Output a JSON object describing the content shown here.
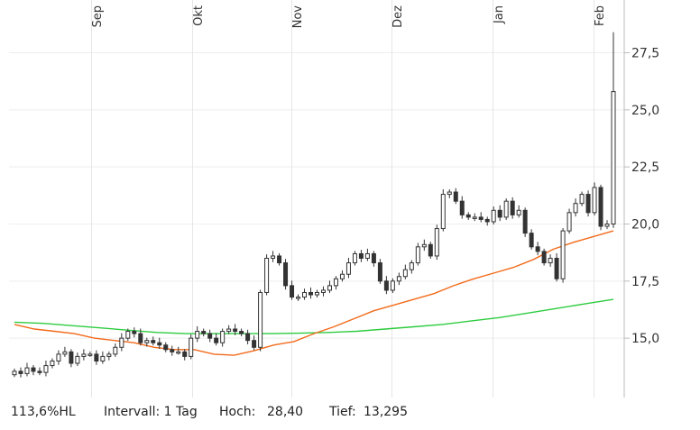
{
  "chart_data": {
    "type": "candlestick",
    "x_tick_labels": [
      "Sep",
      "Okt",
      "Nov",
      "Dez",
      "Jan",
      "Feb"
    ],
    "y_tick_labels": [
      "15,0",
      "17,5",
      "20,0",
      "22,5",
      "25,0",
      "27,5"
    ],
    "y_ticks": [
      15.0,
      17.5,
      20.0,
      22.5,
      25.0,
      27.5
    ],
    "ylim": [
      12.4,
      29.1
    ],
    "grid": true,
    "series": [
      {
        "type": "candlestick",
        "color": "#333333",
        "values": [
          13.55,
          13.45,
          13.7,
          13.55,
          13.5,
          13.8,
          14.0,
          14.3,
          14.4,
          13.9,
          14.2,
          14.3,
          14.3,
          14.0,
          14.2,
          14.3,
          14.6,
          15.0,
          15.3,
          15.2,
          14.8,
          14.9,
          14.8,
          14.7,
          14.5,
          14.4,
          14.4,
          14.2,
          15.0,
          15.3,
          15.2,
          15.0,
          14.8,
          15.3,
          15.4,
          15.3,
          15.2,
          14.9,
          14.6,
          17.0,
          18.5,
          18.6,
          18.3,
          17.3,
          16.8,
          16.8,
          17.0,
          16.9,
          17.0,
          17.1,
          17.3,
          17.6,
          17.8,
          18.3,
          18.7,
          18.5,
          18.7,
          18.3,
          17.5,
          17.1,
          17.5,
          17.7,
          18.0,
          18.3,
          19.0,
          19.1,
          18.6,
          19.8,
          21.3,
          21.4,
          21.0,
          20.4,
          20.3,
          20.3,
          20.2,
          20.1,
          20.6,
          20.3,
          21.0,
          20.4,
          20.6,
          19.6,
          19.0,
          18.8,
          18.3,
          18.5,
          17.6,
          19.7,
          20.5,
          20.9,
          21.3,
          20.5,
          21.6,
          19.9,
          20.0,
          25.8
        ],
        "index_range": [
          0,
          95
        ]
      },
      {
        "type": "line",
        "color": "#f26a1b",
        "values": [
          15.6,
          15.4,
          15.3,
          15.2,
          15.0,
          14.9,
          14.8,
          14.6,
          14.5,
          14.5,
          14.3,
          14.25,
          14.45,
          14.7,
          14.85,
          15.2,
          15.5,
          15.85,
          16.2,
          16.45,
          16.7,
          16.95,
          17.3,
          17.6,
          17.85,
          18.1,
          18.45,
          18.9,
          19.2,
          19.45,
          19.7
        ],
        "index_range": [
          0,
          95
        ]
      },
      {
        "type": "line",
        "color": "#2ecc40",
        "values": [
          15.7,
          15.65,
          15.55,
          15.45,
          15.35,
          15.25,
          15.2,
          15.2,
          15.2,
          15.2,
          15.22,
          15.25,
          15.3,
          15.4,
          15.5,
          15.6,
          15.75,
          15.9,
          16.1,
          16.3,
          16.5,
          16.7
        ],
        "index_range": [
          0,
          95
        ]
      }
    ]
  },
  "footer": {
    "scale": "113,6%HL",
    "interval": "Intervall: 1 Tag",
    "high_label": "Hoch:",
    "high_value": "28,40",
    "low_label": "Tief:",
    "low_value": "13,295"
  }
}
